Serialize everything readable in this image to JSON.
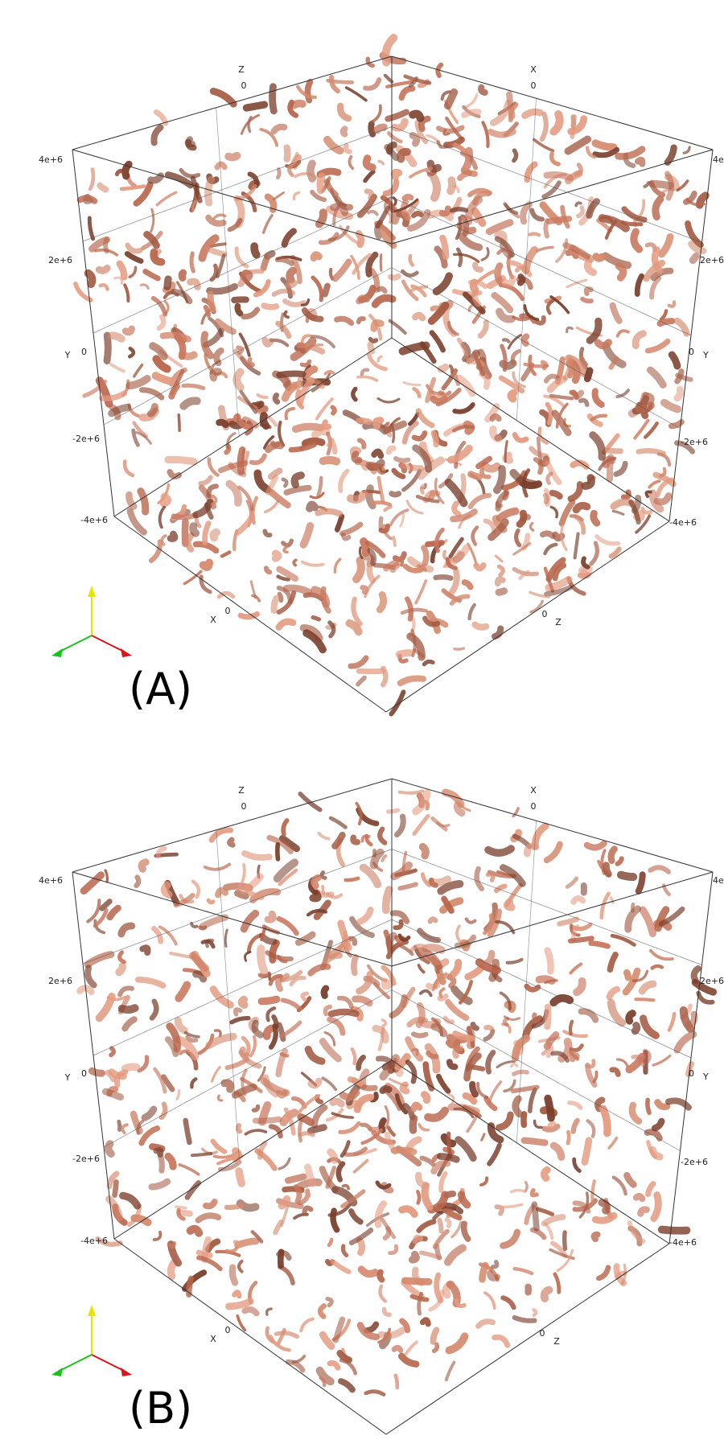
{
  "panels": [
    {
      "id": "A",
      "label": "(A)",
      "axes": {
        "x_label": "X",
        "y_label": "Y",
        "z_label": "Z",
        "zero_tick": "0",
        "y_ticks": [
          "4e+6",
          "2e+6",
          "0",
          "-2e+6",
          "-4e+6"
        ],
        "right_ticks": [
          "4e",
          "2e+6",
          "0",
          "-2e+6",
          "-4e+6"
        ]
      },
      "density": 1.0,
      "seed": 17
    },
    {
      "id": "B",
      "label": "(B)",
      "axes": {
        "x_label": "X",
        "y_label": "Y",
        "z_label": "Z",
        "zero_tick": "0",
        "y_ticks": [
          "4e+6",
          "2e+6",
          "0",
          "-2e+6",
          "-4e+6"
        ],
        "right_ticks": [
          "4e",
          "2e+6",
          "0",
          "-2e+6",
          "-4e+6"
        ]
      },
      "density": 0.8,
      "seed": 91
    }
  ],
  "colors": {
    "surface": "#c9785e",
    "surface_dark": "#7a3f2c",
    "surface_light": "#e39a7f",
    "box_line": "#333333",
    "orient_y": "#e6e600",
    "orient_x": "#d81818",
    "orient_z": "#19c419"
  },
  "icons": {
    "orientation": "orientation-axes-icon"
  }
}
